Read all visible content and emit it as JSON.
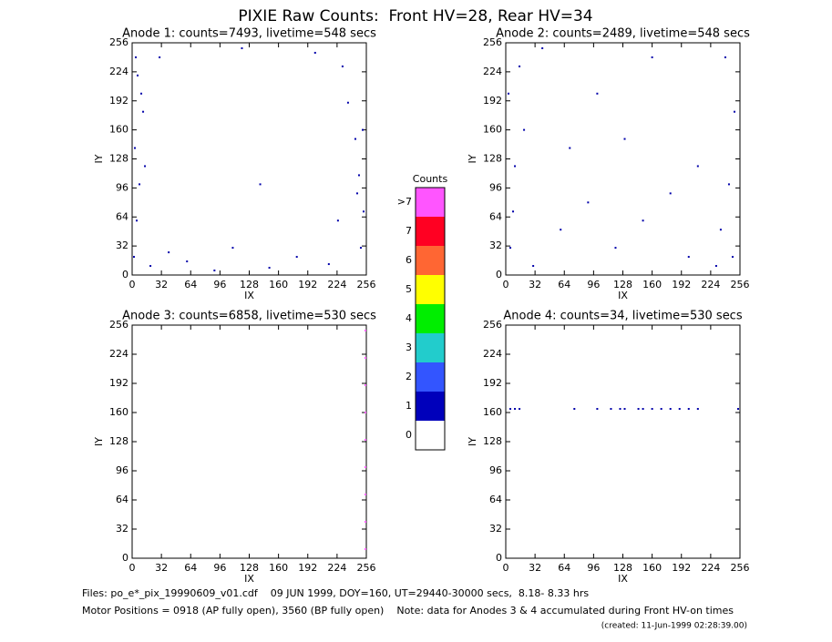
{
  "title": "PIXIE Raw Counts:  Front HV=28, Rear HV=34",
  "chart_data": [
    {
      "type": "scatter",
      "title": "Anode 1: counts=7493, livetime=548 secs",
      "x_label": "IX",
      "y_label": "IY",
      "xlim": [
        0,
        256
      ],
      "ylim": [
        0,
        256
      ],
      "xticks": [
        0,
        32,
        64,
        96,
        128,
        160,
        192,
        224,
        256
      ],
      "yticks": [
        0,
        32,
        64,
        96,
        128,
        160,
        192,
        224,
        256
      ],
      "color": "#0000aa",
      "x": [
        2,
        5,
        8,
        3,
        12,
        6,
        250,
        253,
        248,
        244,
        236,
        230,
        20,
        40,
        30,
        60,
        90,
        120,
        150,
        180,
        200,
        215,
        225,
        10,
        4,
        246,
        252,
        14,
        110,
        140
      ],
      "y": [
        20,
        60,
        100,
        140,
        180,
        220,
        30,
        70,
        110,
        150,
        190,
        230,
        10,
        25,
        240,
        15,
        5,
        250,
        8,
        20,
        245,
        12,
        60,
        200,
        240,
        90,
        160,
        120,
        30,
        100
      ]
    },
    {
      "type": "scatter",
      "title": "Anode 2: counts=2489, livetime=548 secs",
      "x_label": "IX",
      "y_label": "IY",
      "xlim": [
        0,
        256
      ],
      "ylim": [
        0,
        256
      ],
      "xticks": [
        0,
        32,
        64,
        96,
        128,
        160,
        192,
        224,
        256
      ],
      "yticks": [
        0,
        32,
        64,
        96,
        128,
        160,
        192,
        224,
        256
      ],
      "color": "#0000aa",
      "x": [
        5,
        10,
        3,
        248,
        244,
        250,
        240,
        30,
        60,
        90,
        120,
        150,
        180,
        210,
        20,
        15,
        235,
        8,
        100,
        130,
        160,
        200,
        230,
        40,
        70
      ],
      "y": [
        30,
        120,
        200,
        20,
        100,
        180,
        240,
        10,
        50,
        80,
        30,
        60,
        90,
        120,
        160,
        230,
        50,
        70,
        200,
        150,
        240,
        20,
        10,
        250,
        140
      ]
    },
    {
      "type": "scatter",
      "title": "Anode 3: counts=6858, livetime=530 secs",
      "x_label": "IX",
      "y_label": "IY",
      "xlim": [
        0,
        256
      ],
      "ylim": [
        0,
        256
      ],
      "xticks": [
        0,
        32,
        64,
        96,
        128,
        160,
        192,
        224,
        256
      ],
      "yticks": [
        0,
        32,
        64,
        96,
        128,
        160,
        192,
        224,
        256
      ],
      "color": "#ff66ff",
      "x": [
        255,
        255,
        255,
        255,
        255,
        255,
        255,
        255,
        255
      ],
      "y": [
        10,
        40,
        70,
        100,
        130,
        160,
        190,
        220,
        250
      ]
    },
    {
      "type": "scatter",
      "title": "Anode 4: counts=34, livetime=530 secs",
      "x_label": "IX",
      "y_label": "IY",
      "xlim": [
        0,
        256
      ],
      "ylim": [
        0,
        256
      ],
      "xticks": [
        0,
        32,
        64,
        96,
        128,
        160,
        192,
        224,
        256
      ],
      "yticks": [
        0,
        32,
        64,
        96,
        128,
        160,
        192,
        224,
        256
      ],
      "color": "#0000aa",
      "x": [
        5,
        10,
        15,
        75,
        100,
        115,
        125,
        130,
        145,
        150,
        160,
        170,
        180,
        190,
        200,
        210,
        254
      ],
      "y": [
        164,
        164,
        164,
        164,
        164,
        164,
        164,
        164,
        164,
        164,
        164,
        164,
        164,
        164,
        164,
        164,
        164
      ]
    }
  ],
  "colorbar": {
    "title": "Counts",
    "labels": [
      ">7",
      "7",
      "6",
      "5",
      "4",
      "3",
      "2",
      "1",
      "0"
    ],
    "colors": [
      "#ff55ff",
      "#ff0022",
      "#ff6633",
      "#ffff00",
      "#00ee00",
      "#22cccc",
      "#3355ff",
      "#0000bb",
      "#ffffff"
    ]
  },
  "footer": {
    "files": "Files: po_e*_pix_19990609_v01.cdf    09 JUN 1999, DOY=160, UT=29440-30000 secs,  8.18- 8.33 hrs",
    "motor": "Motor Positions = 0918 (AP fully open), 3560 (BP fully open)    Note: data for Anodes 3 & 4 accumulated during Front HV-on times",
    "created": "(created: 11-Jun-1999 02:28:39.00)"
  }
}
